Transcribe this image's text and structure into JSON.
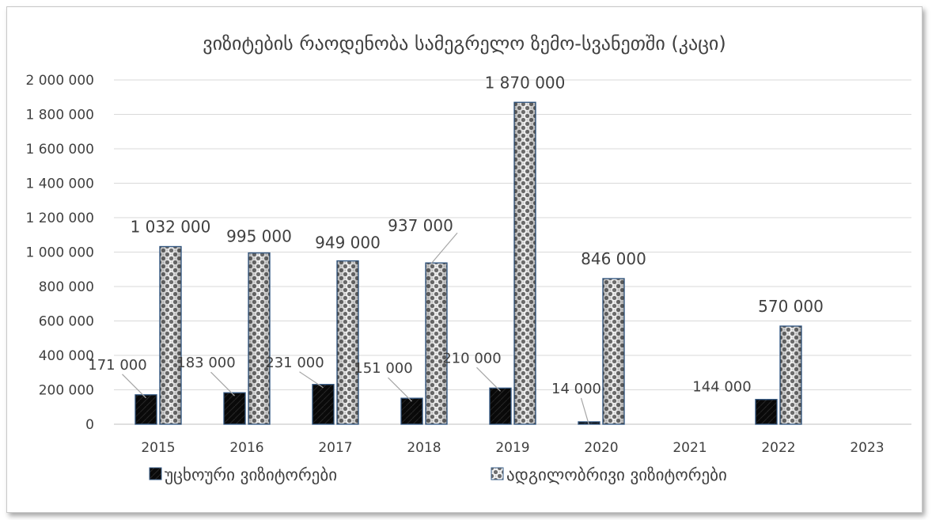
{
  "chart_data": {
    "type": "bar",
    "title": "ვიზიტების რაოდენობა სამეგრელო ზემო-სვანეთში (კაცი)",
    "categories": [
      "2015",
      "2016",
      "2017",
      "2018",
      "2019",
      "2020",
      "2021",
      "2022",
      "2023"
    ],
    "series": [
      {
        "name": "უცხოური ვიზიტორები",
        "values": [
          171000,
          183000,
          231000,
          151000,
          210000,
          14000,
          null,
          144000,
          null
        ],
        "labels": [
          "171 000",
          "183 000",
          "231 000",
          "151 000",
          "210 000",
          "14 000",
          "",
          "144 000",
          ""
        ],
        "color": "#111111"
      },
      {
        "name": "ადგილობრივი ვიზიტორები",
        "values": [
          1032000,
          995000,
          949000,
          937000,
          1870000,
          846000,
          null,
          570000,
          null
        ],
        "labels": [
          "1 032 000",
          "995 000",
          "949 000",
          "937 000",
          "1 870 000",
          "846 000",
          "",
          "570 000",
          ""
        ],
        "color": "#9a9a9a"
      }
    ],
    "ylim": [
      0,
      2000000
    ],
    "yticks": [
      0,
      200000,
      400000,
      600000,
      800000,
      1000000,
      1200000,
      1400000,
      1600000,
      1800000,
      2000000
    ],
    "ytick_labels": [
      "0",
      "200 000",
      "400 000",
      "600 000",
      "800 000",
      "1 000 000",
      "1 200 000",
      "1 400 000",
      "1 600 000",
      "1 800 000",
      "2 000 000"
    ],
    "grid": true,
    "legend_position": "bottom"
  }
}
